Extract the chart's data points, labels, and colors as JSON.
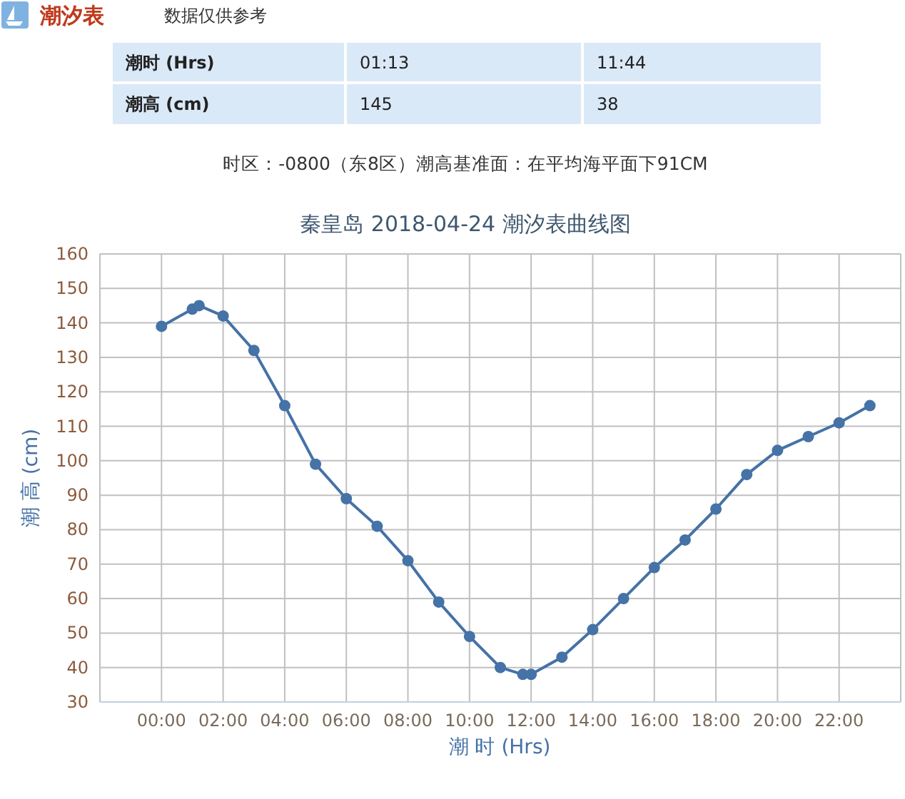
{
  "chart_data": {
    "type": "line",
    "title": "秦皇岛 2018-04-24 潮汐表曲线图",
    "xlabel": "潮 时 (Hrs)",
    "ylabel": "潮 高 (cm)",
    "annotations": [
      "潮汐表",
      "数据仅供参考",
      "潮时 (Hrs)",
      "01:13",
      "11:44",
      "潮高 (cm)",
      "145",
      "38",
      "时区：-0800（东8区）潮高基准面：在平均海平面下91CM"
    ],
    "x": [
      0,
      1,
      1.22,
      2,
      3,
      4,
      5,
      6,
      7,
      8,
      9,
      10,
      11,
      11.73,
      12,
      13,
      14,
      15,
      16,
      17,
      18,
      19,
      20,
      21,
      22,
      23
    ],
    "series": [
      {
        "color": "#4572a7",
        "values": [
          139,
          144,
          145,
          142,
          132,
          116,
          99,
          89,
          81,
          71,
          59,
          49,
          40,
          38,
          38,
          43,
          51,
          60,
          69,
          77,
          86,
          96,
          103,
          107,
          111,
          116
        ]
      }
    ],
    "xlim": [
      -2,
      24
    ],
    "xticks": [
      {
        "value": 0,
        "label": "00:00"
      },
      {
        "value": 2,
        "label": "02:00"
      },
      {
        "value": 4,
        "label": "04:00"
      },
      {
        "value": 6,
        "label": "06:00"
      },
      {
        "value": 8,
        "label": "08:00"
      },
      {
        "value": 10,
        "label": "10:00"
      },
      {
        "value": 12,
        "label": "12:00"
      },
      {
        "value": 14,
        "label": "14:00"
      },
      {
        "value": 16,
        "label": "16:00"
      },
      {
        "value": 18,
        "label": "18:00"
      },
      {
        "value": 20,
        "label": "20:00"
      },
      {
        "value": 22,
        "label": "22:00"
      }
    ],
    "ylim": [
      30,
      160
    ],
    "yticks": [
      30,
      40,
      50,
      60,
      70,
      80,
      90,
      100,
      110,
      120,
      130,
      140,
      150,
      160
    ],
    "grid": true,
    "marker": "circle",
    "line_style": "solid"
  }
}
